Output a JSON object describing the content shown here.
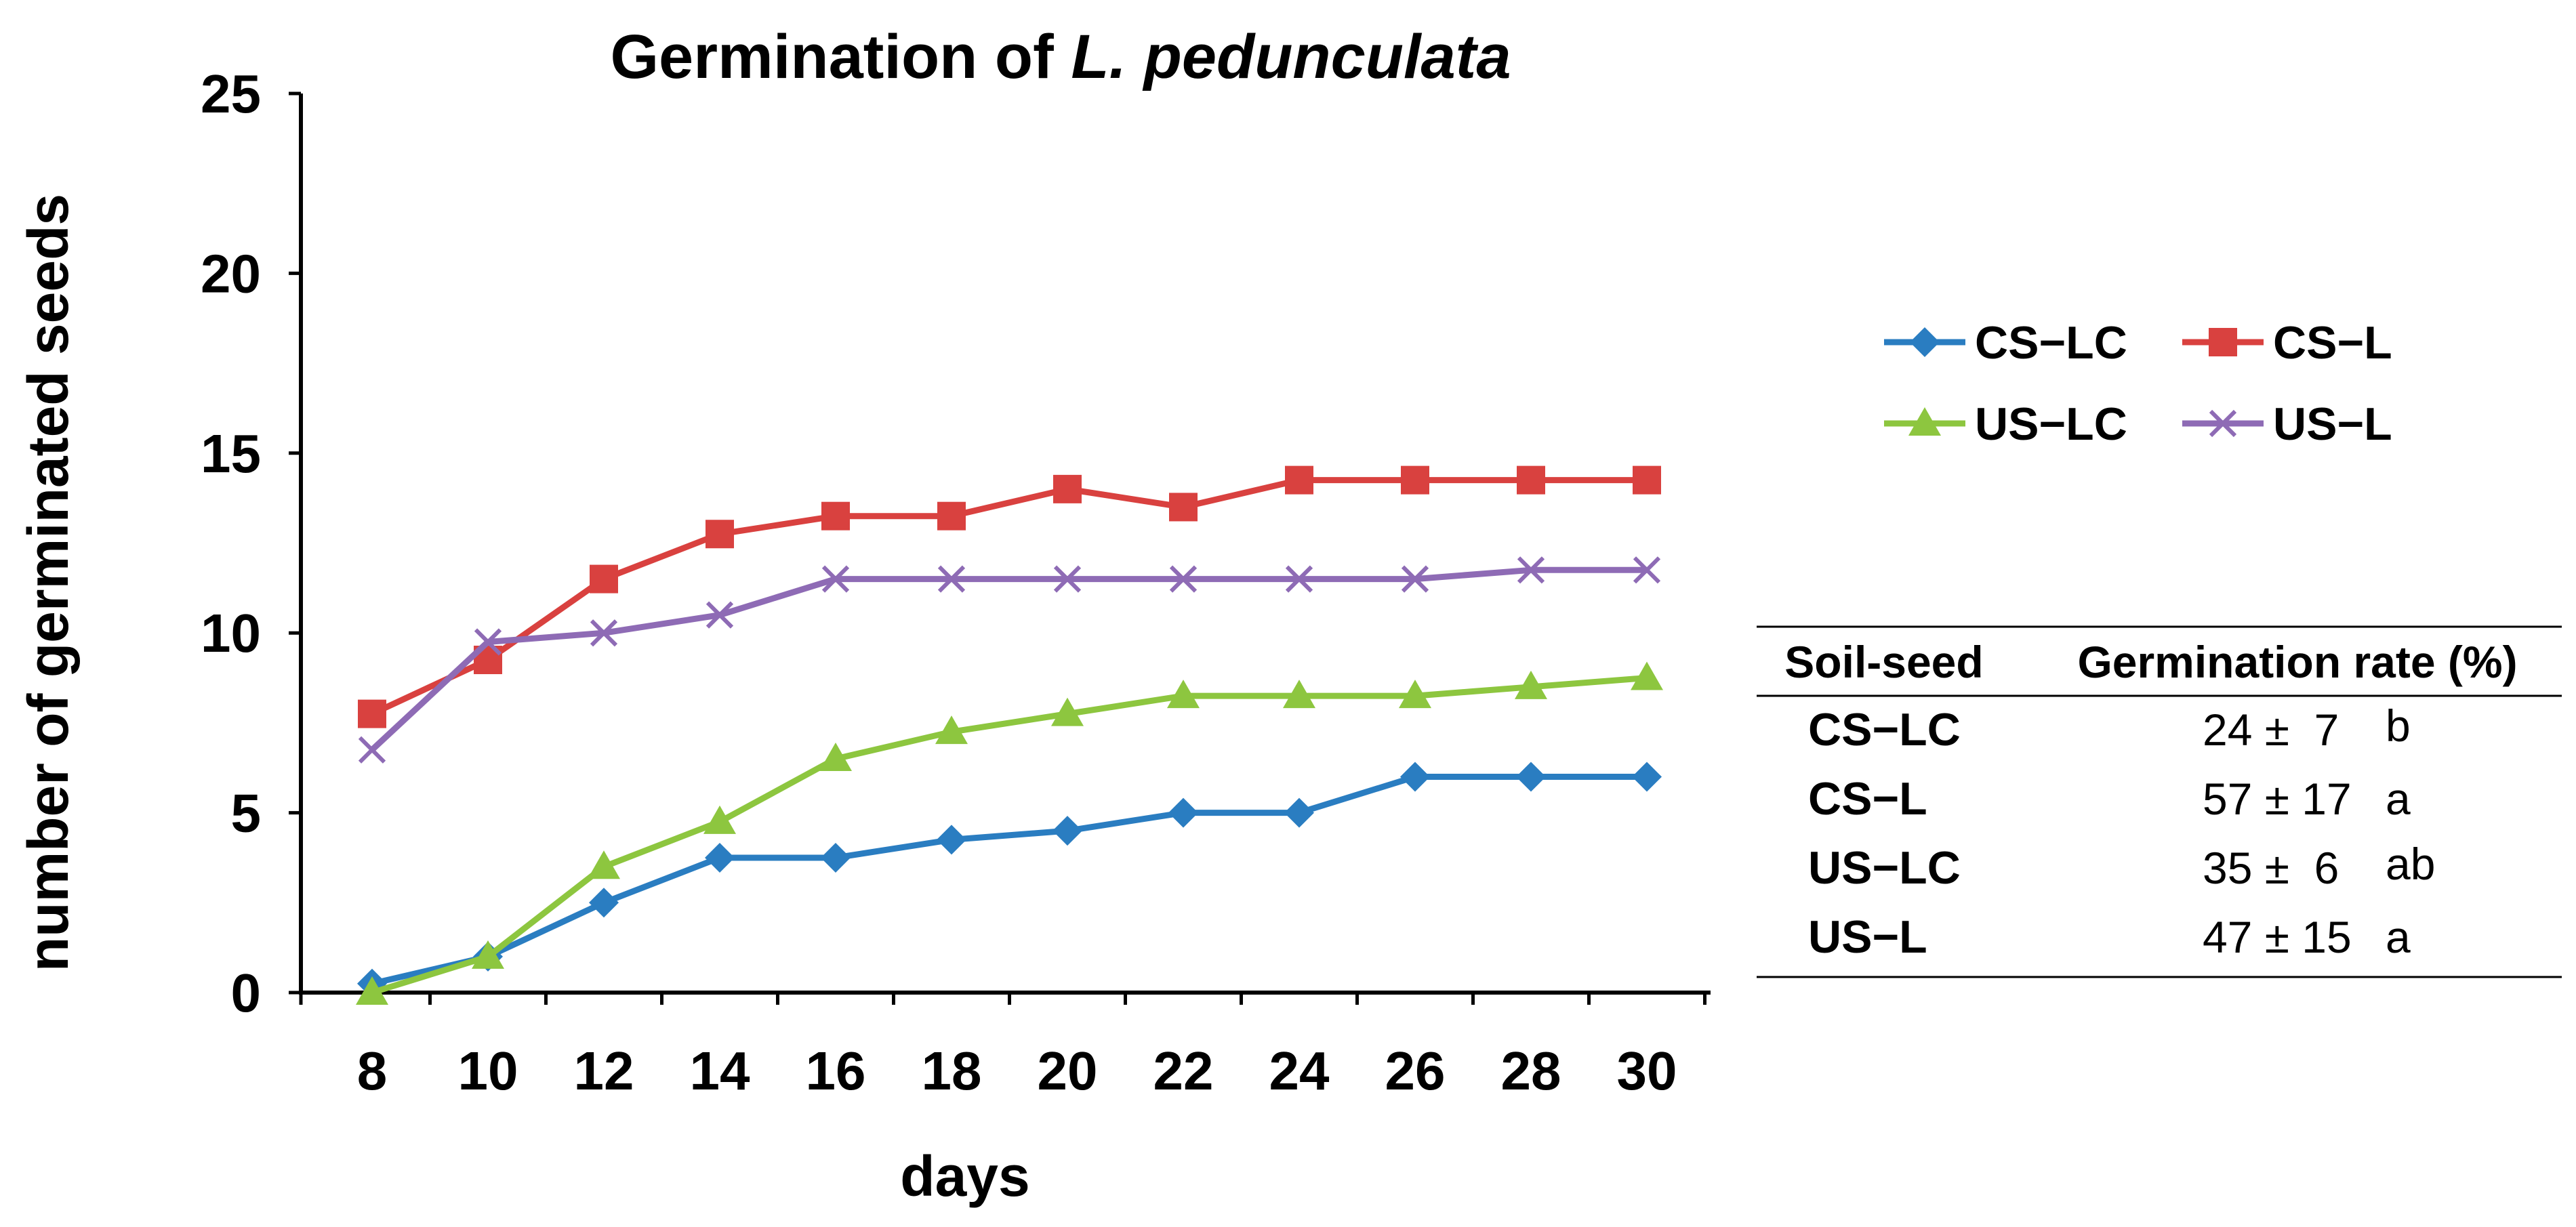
{
  "chart_data": {
    "type": "line",
    "title_prefix": "Germination of ",
    "title_species": "L. pedunculata",
    "xlabel": "days",
    "ylabel": "number of germinated seeds",
    "x": [
      8,
      10,
      12,
      14,
      16,
      18,
      20,
      22,
      24,
      26,
      28,
      30
    ],
    "x_tick_labels": [
      "8",
      "10",
      "12",
      "14",
      "16",
      "18",
      "20",
      "22",
      "24",
      "26",
      "28",
      "30"
    ],
    "ylim": [
      0,
      25
    ],
    "y_ticks": [
      0,
      5,
      10,
      15,
      20,
      25
    ],
    "y_tick_labels": [
      "0",
      "5",
      "10",
      "15",
      "20",
      "25"
    ],
    "grid": false,
    "legend_position": "right",
    "series": [
      {
        "name": "CS−LC",
        "color": "#2a7dc1",
        "marker": "diamond",
        "values": [
          0.25,
          1.0,
          2.5,
          3.75,
          3.75,
          4.25,
          4.5,
          5.0,
          5.0,
          6.0,
          6.0,
          6.0
        ]
      },
      {
        "name": "CS−L",
        "color": "#d9413f",
        "marker": "square",
        "values": [
          7.75,
          9.25,
          11.5,
          12.75,
          13.25,
          13.25,
          14.0,
          13.5,
          14.25,
          14.25,
          14.25,
          14.25
        ]
      },
      {
        "name": "US−LC",
        "color": "#8dc63f",
        "marker": "triangle",
        "values": [
          0.0,
          1.0,
          3.5,
          4.75,
          6.5,
          7.25,
          7.75,
          8.25,
          8.25,
          8.25,
          8.5,
          8.75
        ]
      },
      {
        "name": "US−L",
        "color": "#8e6bb5",
        "marker": "x",
        "values": [
          6.75,
          9.75,
          10.0,
          10.5,
          11.5,
          11.5,
          11.5,
          11.5,
          11.5,
          11.5,
          11.75,
          11.75
        ]
      }
    ]
  },
  "table": {
    "headers": [
      "Soil-seed",
      "Germination rate (%)"
    ],
    "rows": [
      {
        "label": "CS−LC",
        "value": "24 ±  7",
        "letter": "b"
      },
      {
        "label": "CS−L",
        "value": "57 ± 17",
        "letter": "a"
      },
      {
        "label": "US−LC",
        "value": "35 ±  6",
        "letter": "ab"
      },
      {
        "label": "US−L",
        "value": "47 ± 15",
        "letter": "a"
      }
    ]
  }
}
